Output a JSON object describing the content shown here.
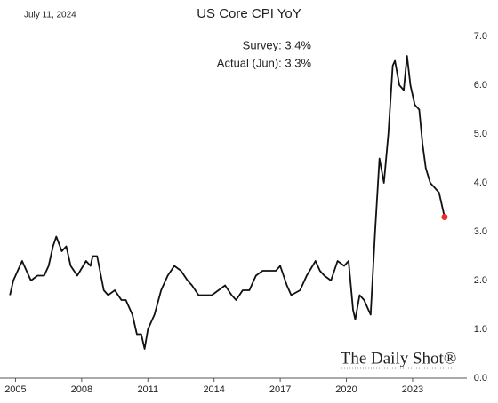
{
  "chart_data": {
    "type": "line",
    "date": "July 11, 2024",
    "title": "US Core CPI YoY",
    "annotations": [
      "Survey:  3.4%",
      "Actual (Jun):  3.3%"
    ],
    "watermark": "The Daily Shot®",
    "x": [
      2004.75,
      2004.9,
      2005.1,
      2005.3,
      2005.5,
      2005.7,
      2006.0,
      2006.3,
      2006.5,
      2006.7,
      2006.85,
      2007.1,
      2007.3,
      2007.5,
      2007.8,
      2008.2,
      2008.4,
      2008.5,
      2008.7,
      2009.0,
      2009.2,
      2009.5,
      2009.8,
      2010.0,
      2010.3,
      2010.5,
      2010.7,
      2010.85,
      2011.0,
      2011.3,
      2011.6,
      2011.9,
      2012.2,
      2012.5,
      2012.8,
      2013.0,
      2013.3,
      2013.6,
      2013.9,
      2014.2,
      2014.5,
      2014.8,
      2015.0,
      2015.3,
      2015.6,
      2015.9,
      2016.2,
      2016.5,
      2016.8,
      2017.0,
      2017.3,
      2017.5,
      2017.9,
      2018.2,
      2018.6,
      2018.8,
      2019.0,
      2019.3,
      2019.6,
      2019.9,
      2020.1,
      2020.3,
      2020.4,
      2020.6,
      2020.8,
      2021.0,
      2021.1,
      2021.3,
      2021.5,
      2021.7,
      2021.9,
      2022.1,
      2022.2,
      2022.4,
      2022.6,
      2022.75,
      2022.9,
      2023.1,
      2023.3,
      2023.45,
      2023.6,
      2023.8,
      2024.0,
      2024.2,
      2024.45
    ],
    "series": [
      {
        "name": "US Core CPI YoY",
        "color": "#111111",
        "values": [
          1.7,
          2.0,
          2.2,
          2.4,
          2.2,
          2.0,
          2.1,
          2.1,
          2.3,
          2.7,
          2.9,
          2.6,
          2.7,
          2.3,
          2.1,
          2.4,
          2.3,
          2.5,
          2.5,
          1.8,
          1.7,
          1.8,
          1.6,
          1.6,
          1.3,
          0.9,
          0.9,
          0.6,
          1.0,
          1.3,
          1.8,
          2.1,
          2.3,
          2.2,
          2.0,
          1.9,
          1.7,
          1.7,
          1.7,
          1.8,
          1.9,
          1.7,
          1.6,
          1.8,
          1.8,
          2.1,
          2.2,
          2.2,
          2.2,
          2.3,
          1.9,
          1.7,
          1.8,
          2.1,
          2.4,
          2.2,
          2.1,
          2.0,
          2.4,
          2.3,
          2.4,
          1.4,
          1.2,
          1.7,
          1.6,
          1.4,
          1.3,
          3.0,
          4.5,
          4.0,
          5.0,
          6.4,
          6.5,
          6.0,
          5.9,
          6.6,
          6.0,
          5.6,
          5.5,
          4.8,
          4.3,
          4.0,
          3.9,
          3.8,
          3.3
        ]
      }
    ],
    "highlight_color": "#e8312f",
    "xlim": [
      2004.7,
      2025.3
    ],
    "xticks": [
      2005,
      2008,
      2011,
      2014,
      2017,
      2020,
      2023
    ],
    "ylim": [
      0,
      7
    ],
    "yticks": [
      {
        "value": 0,
        "label": "0.0"
      },
      {
        "value": 1,
        "label": "1.0"
      },
      {
        "value": 2,
        "label": "2.0"
      },
      {
        "value": 3,
        "label": "3.0"
      },
      {
        "value": 4,
        "label": "4.0"
      },
      {
        "value": 5,
        "label": "5.0"
      },
      {
        "value": 6,
        "label": "6.0"
      },
      {
        "value": 7,
        "label": "7.0"
      }
    ],
    "grid": false
  }
}
